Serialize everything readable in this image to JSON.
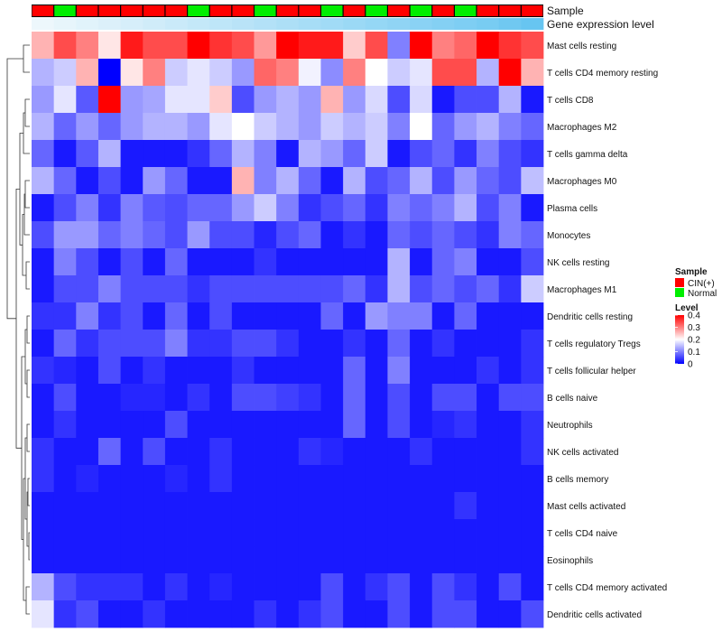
{
  "chart_data": {
    "type": "heatmap",
    "title": "",
    "annotation_labels": [
      "Sample",
      "Gene expression level"
    ],
    "rows": [
      "Mast cells resting",
      "T cells CD4 memory resting",
      "T cells CD8",
      "Macrophages M2",
      "T cells gamma delta",
      "Macrophages M0",
      "Plasma cells",
      "Monocytes",
      "NK cells resting",
      "Macrophages M1",
      "Dendritic cells resting",
      "T cells regulatory  Tregs",
      "T cells follicular helper",
      "B cells naive",
      "Neutrophils",
      "NK cells activated",
      "B cells memory",
      "Mast cells activated",
      "T cells CD4 naive",
      "Eosinophils",
      "T cells CD4 memory activated",
      "Dendritic cells activated"
    ],
    "sample_groups": [
      "CIN(+)",
      "Normal",
      "CIN(+)",
      "CIN(+)",
      "CIN(+)",
      "CIN(+)",
      "CIN(+)",
      "Normal",
      "CIN(+)",
      "CIN(+)",
      "Normal",
      "CIN(+)",
      "CIN(+)",
      "Normal",
      "CIN(+)",
      "Normal",
      "CIN(+)",
      "Normal",
      "CIN(+)",
      "Normal",
      "CIN(+)",
      "CIN(+)",
      "CIN(+)"
    ],
    "gene_expression_level": [
      0.02,
      0.06,
      0.1,
      0.14,
      0.18,
      0.22,
      0.26,
      0.3,
      0.34,
      0.38,
      0.42,
      0.46,
      0.5,
      0.54,
      0.58,
      0.62,
      0.66,
      0.7,
      0.74,
      0.78,
      0.82,
      0.88,
      0.94
    ],
    "values": [
      [
        0.26,
        0.34,
        0.3,
        0.22,
        0.38,
        0.34,
        0.34,
        0.4,
        0.36,
        0.34,
        0.28,
        0.4,
        0.38,
        0.38,
        0.24,
        0.34,
        0.1,
        0.4,
        0.3,
        0.32,
        0.4,
        0.36,
        0.34
      ],
      [
        0.14,
        0.16,
        0.26,
        0.0,
        0.22,
        0.3,
        0.16,
        0.18,
        0.16,
        0.12,
        0.32,
        0.3,
        0.19,
        0.11,
        0.3,
        0.2,
        0.16,
        0.18,
        0.34,
        0.34,
        0.14,
        0.4,
        0.26
      ],
      [
        0.12,
        0.18,
        0.07,
        0.4,
        0.12,
        0.13,
        0.18,
        0.18,
        0.24,
        0.06,
        0.12,
        0.14,
        0.12,
        0.26,
        0.12,
        0.17,
        0.06,
        0.17,
        0.02,
        0.06,
        0.06,
        0.14,
        0.02
      ],
      [
        0.14,
        0.08,
        0.12,
        0.08,
        0.12,
        0.14,
        0.14,
        0.12,
        0.18,
        0.2,
        0.16,
        0.14,
        0.12,
        0.16,
        0.14,
        0.16,
        0.1,
        0.2,
        0.08,
        0.12,
        0.14,
        0.1,
        0.08
      ],
      [
        0.08,
        0.02,
        0.07,
        0.14,
        0.02,
        0.02,
        0.02,
        0.04,
        0.08,
        0.14,
        0.1,
        0.02,
        0.14,
        0.12,
        0.08,
        0.16,
        0.02,
        0.06,
        0.08,
        0.04,
        0.1,
        0.06,
        0.04
      ],
      [
        0.14,
        0.08,
        0.02,
        0.06,
        0.02,
        0.12,
        0.08,
        0.02,
        0.02,
        0.26,
        0.1,
        0.14,
        0.08,
        0.02,
        0.14,
        0.06,
        0.08,
        0.14,
        0.06,
        0.12,
        0.08,
        0.06,
        0.15
      ],
      [
        0.02,
        0.06,
        0.1,
        0.04,
        0.1,
        0.07,
        0.06,
        0.08,
        0.08,
        0.12,
        0.16,
        0.1,
        0.04,
        0.06,
        0.08,
        0.04,
        0.1,
        0.08,
        0.1,
        0.14,
        0.06,
        0.1,
        0.02
      ],
      [
        0.06,
        0.12,
        0.12,
        0.08,
        0.1,
        0.08,
        0.06,
        0.12,
        0.06,
        0.06,
        0.03,
        0.06,
        0.08,
        0.02,
        0.04,
        0.02,
        0.08,
        0.06,
        0.08,
        0.06,
        0.04,
        0.1,
        0.08
      ],
      [
        0.02,
        0.1,
        0.06,
        0.02,
        0.06,
        0.02,
        0.08,
        0.02,
        0.02,
        0.02,
        0.04,
        0.02,
        0.02,
        0.02,
        0.02,
        0.02,
        0.14,
        0.02,
        0.08,
        0.1,
        0.02,
        0.02,
        0.06
      ],
      [
        0.02,
        0.06,
        0.06,
        0.1,
        0.06,
        0.06,
        0.06,
        0.04,
        0.06,
        0.06,
        0.06,
        0.06,
        0.06,
        0.06,
        0.08,
        0.04,
        0.14,
        0.06,
        0.08,
        0.06,
        0.08,
        0.04,
        0.16
      ],
      [
        0.04,
        0.04,
        0.1,
        0.04,
        0.06,
        0.02,
        0.08,
        0.02,
        0.06,
        0.02,
        0.02,
        0.02,
        0.02,
        0.08,
        0.02,
        0.12,
        0.1,
        0.1,
        0.02,
        0.08,
        0.02,
        0.02,
        0.02
      ],
      [
        0.02,
        0.08,
        0.04,
        0.06,
        0.06,
        0.06,
        0.1,
        0.04,
        0.04,
        0.06,
        0.06,
        0.04,
        0.02,
        0.02,
        0.04,
        0.02,
        0.08,
        0.02,
        0.04,
        0.02,
        0.02,
        0.02,
        0.04
      ],
      [
        0.04,
        0.03,
        0.02,
        0.06,
        0.02,
        0.04,
        0.02,
        0.02,
        0.02,
        0.04,
        0.02,
        0.02,
        0.02,
        0.02,
        0.08,
        0.02,
        0.1,
        0.02,
        0.02,
        0.02,
        0.04,
        0.02,
        0.04
      ],
      [
        0.02,
        0.06,
        0.02,
        0.02,
        0.03,
        0.03,
        0.02,
        0.04,
        0.02,
        0.06,
        0.06,
        0.05,
        0.04,
        0.02,
        0.08,
        0.02,
        0.06,
        0.02,
        0.06,
        0.06,
        0.02,
        0.06,
        0.06
      ],
      [
        0.02,
        0.04,
        0.02,
        0.02,
        0.02,
        0.02,
        0.06,
        0.02,
        0.02,
        0.02,
        0.02,
        0.02,
        0.02,
        0.02,
        0.08,
        0.02,
        0.06,
        0.02,
        0.03,
        0.04,
        0.02,
        0.02,
        0.04
      ],
      [
        0.04,
        0.02,
        0.02,
        0.08,
        0.02,
        0.06,
        0.02,
        0.02,
        0.04,
        0.02,
        0.02,
        0.02,
        0.04,
        0.03,
        0.02,
        0.02,
        0.02,
        0.04,
        0.02,
        0.02,
        0.02,
        0.02,
        0.04
      ],
      [
        0.04,
        0.02,
        0.03,
        0.02,
        0.02,
        0.02,
        0.03,
        0.02,
        0.04,
        0.02,
        0.02,
        0.02,
        0.02,
        0.02,
        0.02,
        0.02,
        0.02,
        0.02,
        0.02,
        0.02,
        0.02,
        0.02,
        0.02
      ],
      [
        0.02,
        0.02,
        0.02,
        0.02,
        0.02,
        0.02,
        0.02,
        0.02,
        0.02,
        0.02,
        0.02,
        0.02,
        0.02,
        0.02,
        0.02,
        0.02,
        0.02,
        0.02,
        0.02,
        0.04,
        0.02,
        0.02,
        0.02
      ],
      [
        0.02,
        0.02,
        0.02,
        0.02,
        0.02,
        0.02,
        0.02,
        0.02,
        0.02,
        0.02,
        0.02,
        0.02,
        0.02,
        0.02,
        0.02,
        0.02,
        0.02,
        0.02,
        0.02,
        0.02,
        0.02,
        0.02,
        0.02
      ],
      [
        0.02,
        0.02,
        0.02,
        0.02,
        0.02,
        0.02,
        0.02,
        0.02,
        0.02,
        0.02,
        0.02,
        0.02,
        0.02,
        0.02,
        0.02,
        0.02,
        0.02,
        0.02,
        0.02,
        0.02,
        0.02,
        0.02,
        0.02
      ],
      [
        0.14,
        0.06,
        0.04,
        0.04,
        0.04,
        0.02,
        0.04,
        0.02,
        0.03,
        0.02,
        0.02,
        0.02,
        0.02,
        0.06,
        0.02,
        0.04,
        0.06,
        0.02,
        0.06,
        0.04,
        0.02,
        0.06,
        0.02
      ],
      [
        0.18,
        0.04,
        0.06,
        0.02,
        0.02,
        0.04,
        0.02,
        0.02,
        0.02,
        0.02,
        0.04,
        0.02,
        0.04,
        0.06,
        0.02,
        0.02,
        0.06,
        0.02,
        0.06,
        0.06,
        0.02,
        0.02,
        0.06
      ]
    ],
    "colorscale": [
      "#0000ff",
      "#ffffff",
      "#ff0000"
    ],
    "color_domain": [
      0,
      0.2,
      0.4
    ],
    "legend": {
      "sample_title": "Sample",
      "sample_entries": [
        {
          "label": "CIN(+)",
          "color": "#ff0000"
        },
        {
          "label": "Normal",
          "color": "#00ee00"
        }
      ],
      "level_title": "Level",
      "level_ticks": [
        "0.4",
        "0.3",
        "0.2",
        "0.1",
        "0"
      ],
      "level_tick_values": [
        0.4,
        0.3,
        0.2,
        0.1,
        0
      ],
      "position": "right"
    },
    "annotation_colors": {
      "CIN(+)": "#ff0000",
      "Normal": "#00ee00",
      "expr_low": "#f0f8fc",
      "expr_high": "#5ec2f0"
    },
    "dendrogram": "rows"
  }
}
